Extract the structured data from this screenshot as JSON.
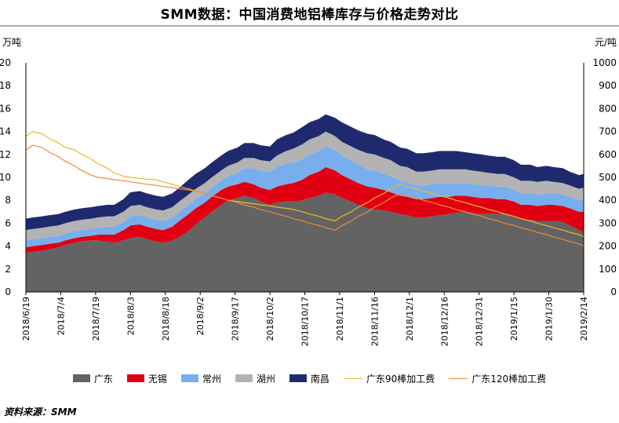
{
  "title": "SMM数据：中国消费地铝棒库存与价格走势对比",
  "source": "资料来源：SMM",
  "colors": {
    "guangdong": "#636363",
    "wuxi": "#e00012",
    "changzhou": "#79aeed",
    "huzhou": "#b3b3b3",
    "nanchang": "#1f2a6e",
    "gd90": "#f0b828",
    "gd120": "#f08a3a"
  },
  "chart_data": {
    "type": "area",
    "stacked": true,
    "yleft": {
      "unit": "万吨",
      "min": 0,
      "max": 20,
      "step": 2
    },
    "yright": {
      "unit": "元/吨",
      "min": 0,
      "max": 1000,
      "step": 100
    },
    "xtick_labels": [
      "2018/6/19",
      "2018/7/4",
      "2018/7/19",
      "2018/8/3",
      "2018/8/18",
      "2018/9/2",
      "2018/9/17",
      "2018/10/2",
      "2018/10/17",
      "2018/11/1",
      "2018/11/16",
      "2018/12/1",
      "2018/12/16",
      "2018/12/31",
      "2019/1/15",
      "2019/1/30",
      "2019/2/14"
    ],
    "dates": [
      "2018-06-19",
      "2018-06-22",
      "2018-06-26",
      "2018-06-29",
      "2018-07-03",
      "2018-07-06",
      "2018-07-10",
      "2018-07-13",
      "2018-07-17",
      "2018-07-20",
      "2018-07-24",
      "2018-07-27",
      "2018-07-31",
      "2018-08-03",
      "2018-08-07",
      "2018-08-10",
      "2018-08-14",
      "2018-08-17",
      "2018-08-21",
      "2018-08-24",
      "2018-08-28",
      "2018-08-31",
      "2018-09-04",
      "2018-09-07",
      "2018-09-11",
      "2018-09-14",
      "2018-09-18",
      "2018-09-21",
      "2018-09-25",
      "2018-09-28",
      "2018-10-02",
      "2018-10-05",
      "2018-10-09",
      "2018-10-12",
      "2018-10-16",
      "2018-10-19",
      "2018-10-23",
      "2018-10-26",
      "2018-10-30",
      "2018-11-02",
      "2018-11-06",
      "2018-11-09",
      "2018-11-13",
      "2018-11-16",
      "2018-11-20",
      "2018-11-23",
      "2018-11-27",
      "2018-11-30",
      "2018-12-04",
      "2018-12-07",
      "2018-12-11",
      "2018-12-14",
      "2018-12-18",
      "2018-12-21",
      "2018-12-25",
      "2018-12-28",
      "2019-01-01",
      "2019-01-04",
      "2019-01-08",
      "2019-01-11",
      "2019-01-15",
      "2019-01-18",
      "2019-01-22",
      "2019-01-25",
      "2019-01-29",
      "2019-02-01",
      "2019-02-05",
      "2019-02-08",
      "2019-02-12",
      "2019-02-14"
    ],
    "series": [
      {
        "name": "广东",
        "kind": "area",
        "axis": "left",
        "values": [
          3.4,
          3.5,
          3.6,
          3.7,
          3.9,
          4.1,
          4.3,
          4.4,
          4.5,
          4.5,
          4.4,
          4.3,
          4.5,
          4.7,
          4.8,
          4.6,
          4.4,
          4.3,
          4.5,
          4.8,
          5.3,
          5.9,
          6.5,
          7.0,
          7.6,
          8.0,
          8.2,
          8.4,
          8.2,
          7.9,
          7.6,
          7.8,
          7.9,
          7.9,
          8.0,
          8.2,
          8.4,
          8.7,
          8.5,
          8.2,
          7.9,
          7.6,
          7.3,
          7.2,
          7.1,
          7.0,
          6.8,
          6.7,
          6.5,
          6.5,
          6.6,
          6.7,
          6.8,
          6.9,
          7.0,
          6.9,
          6.8,
          6.8,
          6.8,
          6.8,
          6.6,
          6.3,
          6.3,
          6.2,
          6.2,
          6.2,
          6.1,
          5.8,
          5.4,
          5.2
        ]
      },
      {
        "name": "无锡",
        "kind": "area",
        "axis": "left",
        "values": [
          0.5,
          0.5,
          0.5,
          0.5,
          0.4,
          0.4,
          0.4,
          0.4,
          0.4,
          0.5,
          0.6,
          0.7,
          0.9,
          1.1,
          1.1,
          1.1,
          1.1,
          1.1,
          1.2,
          1.4,
          1.5,
          1.4,
          1.3,
          1.3,
          1.3,
          1.2,
          1.2,
          1.2,
          1.2,
          1.2,
          1.3,
          1.4,
          1.5,
          1.6,
          1.8,
          2.0,
          2.1,
          2.2,
          2.1,
          2.0,
          1.9,
          1.9,
          1.9,
          1.9,
          1.8,
          1.7,
          1.6,
          1.6,
          1.6,
          1.6,
          1.6,
          1.6,
          1.5,
          1.5,
          1.4,
          1.4,
          1.4,
          1.4,
          1.3,
          1.3,
          1.3,
          1.3,
          1.3,
          1.3,
          1.4,
          1.4,
          1.4,
          1.5,
          1.6,
          1.8
        ]
      },
      {
        "name": "常州",
        "kind": "area",
        "axis": "left",
        "values": [
          0.6,
          0.6,
          0.6,
          0.6,
          0.6,
          0.6,
          0.6,
          0.6,
          0.6,
          0.6,
          0.7,
          0.7,
          0.7,
          0.8,
          0.8,
          0.8,
          0.8,
          0.8,
          0.8,
          0.8,
          0.8,
          0.8,
          0.8,
          0.8,
          0.8,
          0.9,
          1.0,
          1.2,
          1.4,
          1.5,
          1.6,
          1.7,
          1.8,
          1.8,
          1.8,
          1.8,
          1.8,
          1.8,
          1.8,
          1.7,
          1.7,
          1.6,
          1.5,
          1.5,
          1.4,
          1.4,
          1.3,
          1.3,
          1.2,
          1.2,
          1.2,
          1.2,
          1.2,
          1.1,
          1.1,
          1.1,
          1.1,
          1.1,
          1.1,
          1.1,
          1.0,
          1.0,
          1.0,
          1.0,
          1.0,
          1.0,
          1.0,
          1.0,
          1.0,
          1.1
        ]
      },
      {
        "name": "湖州",
        "kind": "area",
        "axis": "left",
        "values": [
          0.9,
          0.9,
          0.9,
          0.9,
          0.9,
          0.9,
          0.9,
          0.9,
          0.9,
          0.9,
          0.9,
          0.9,
          0.9,
          0.9,
          0.9,
          0.9,
          0.9,
          0.9,
          0.9,
          0.9,
          0.9,
          0.9,
          0.9,
          0.9,
          0.9,
          0.9,
          0.9,
          0.9,
          0.9,
          0.9,
          0.9,
          1.0,
          1.1,
          1.2,
          1.3,
          1.3,
          1.3,
          1.3,
          1.2,
          1.2,
          1.2,
          1.3,
          1.4,
          1.4,
          1.4,
          1.4,
          1.3,
          1.3,
          1.2,
          1.2,
          1.2,
          1.2,
          1.2,
          1.2,
          1.2,
          1.2,
          1.2,
          1.1,
          1.1,
          1.1,
          1.1,
          1.1,
          1.1,
          1.1,
          1.1,
          1.0,
          1.0,
          1.0,
          1.0,
          1.0
        ]
      },
      {
        "name": "南昌",
        "kind": "area",
        "axis": "left",
        "values": [
          1.0,
          1.0,
          1.0,
          1.0,
          1.0,
          1.0,
          1.0,
          1.0,
          1.0,
          1.0,
          1.0,
          1.0,
          1.1,
          1.2,
          1.2,
          1.2,
          1.2,
          1.2,
          1.2,
          1.2,
          1.3,
          1.3,
          1.3,
          1.3,
          1.3,
          1.3,
          1.3,
          1.3,
          1.3,
          1.3,
          1.3,
          1.4,
          1.4,
          1.4,
          1.5,
          1.5,
          1.5,
          1.5,
          1.6,
          1.7,
          1.7,
          1.7,
          1.7,
          1.7,
          1.6,
          1.6,
          1.6,
          1.6,
          1.6,
          1.6,
          1.6,
          1.6,
          1.6,
          1.6,
          1.5,
          1.5,
          1.5,
          1.5,
          1.5,
          1.5,
          1.5,
          1.4,
          1.4,
          1.3,
          1.3,
          1.3,
          1.3,
          1.2,
          1.2,
          1.2
        ]
      },
      {
        "name": "广东90棒加工费",
        "kind": "line",
        "axis": "right",
        "values": [
          680,
          700,
          690,
          670,
          650,
          630,
          620,
          600,
          580,
          560,
          540,
          520,
          505,
          500,
          495,
          492,
          490,
          480,
          470,
          460,
          450,
          440,
          430,
          420,
          410,
          400,
          395,
          390,
          385,
          380,
          375,
          370,
          365,
          360,
          350,
          340,
          330,
          320,
          310,
          330,
          350,
          370,
          390,
          410,
          430,
          450,
          470,
          460,
          450,
          440,
          430,
          420,
          410,
          400,
          390,
          380,
          370,
          360,
          350,
          340,
          330,
          320,
          310,
          300,
          290,
          280,
          270,
          260,
          250,
          240
        ]
      },
      {
        "name": "广东120棒加工费",
        "kind": "line",
        "axis": "right",
        "values": [
          620,
          640,
          630,
          610,
          590,
          570,
          550,
          530,
          510,
          500,
          495,
          490,
          485,
          480,
          475,
          470,
          465,
          460,
          455,
          450,
          445,
          440,
          430,
          420,
          410,
          400,
          390,
          380,
          370,
          360,
          350,
          340,
          330,
          320,
          310,
          300,
          290,
          280,
          270,
          290,
          310,
          330,
          350,
          370,
          390,
          410,
          430,
          420,
          410,
          400,
          390,
          380,
          370,
          360,
          350,
          340,
          330,
          320,
          310,
          300,
          290,
          280,
          270,
          260,
          250,
          240,
          230,
          220,
          210,
          200
        ]
      }
    ]
  }
}
